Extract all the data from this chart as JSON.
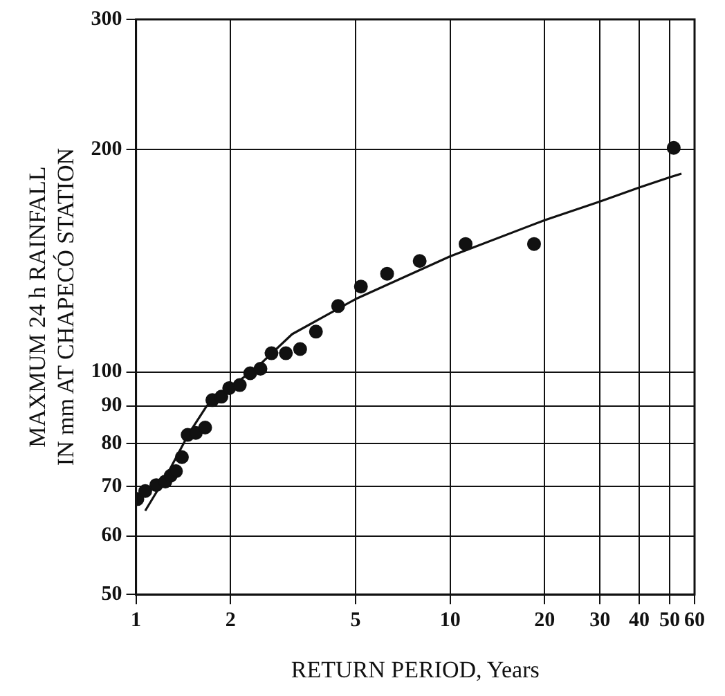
{
  "chart_data": {
    "type": "scatter",
    "xlabel": "RETURN PERIOD, Years",
    "ylabel": "MAXMUM 24 h RAINFALL\nIN mm AT CHAPECÓ STATION",
    "log": "xy",
    "grid": true,
    "legend": false,
    "marker": "circle",
    "xlim": [
      1,
      60
    ],
    "ylim": [
      50,
      300
    ],
    "xticks": [
      1,
      2,
      5,
      10,
      20,
      30,
      40,
      50,
      60
    ],
    "yticks": [
      50,
      60,
      70,
      80,
      90,
      100,
      200,
      300
    ],
    "series": [
      {
        "type": "scatter",
        "color": "#111111",
        "x": [
          1.01,
          1.07,
          1.16,
          1.24,
          1.29,
          1.34,
          1.4,
          1.46,
          1.55,
          1.66,
          1.75,
          1.87,
          1.98,
          2.14,
          2.31,
          2.49,
          2.7,
          3.0,
          3.33,
          3.74,
          4.4,
          5.2,
          6.3,
          8.0,
          11.2,
          18.5,
          51.5
        ],
        "values": [
          67.3,
          69,
          70.3,
          71.1,
          72.4,
          73.4,
          76.7,
          82.2,
          82.7,
          84.1,
          91.6,
          92.6,
          95.1,
          96,
          99.6,
          101,
          106,
          106,
          107.4,
          113.4,
          122.8,
          130.5,
          135.8,
          141.3,
          149,
          149,
          201
        ]
      },
      {
        "type": "line",
        "color": "#111111",
        "marker": "none",
        "line_style": "solid",
        "x": [
          1.07,
          1.25,
          1.47,
          1.68,
          2,
          2.44,
          3.14,
          5,
          10,
          20,
          30,
          40,
          50,
          54.5
        ],
        "values": [
          64.9,
          72.4,
          82.4,
          90,
          95.3,
          101.7,
          112.5,
          125.5,
          143.4,
          160.5,
          170.1,
          177.7,
          183.4,
          185.5
        ]
      }
    ]
  }
}
